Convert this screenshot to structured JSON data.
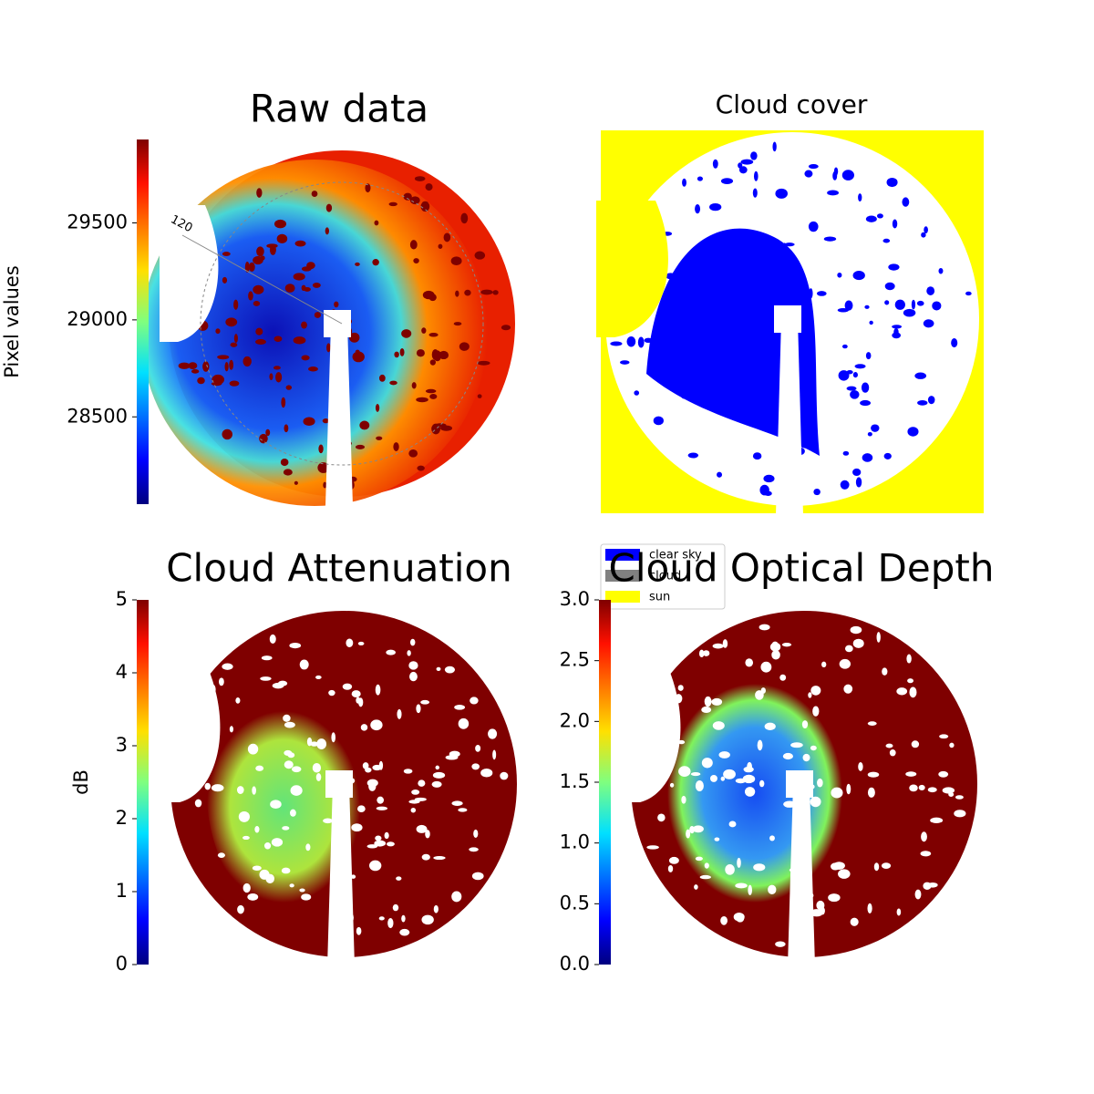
{
  "chart_data": [
    {
      "type": "image",
      "title": "Raw data",
      "colorbar": {
        "label": "Pixel values",
        "lim": [
          28050,
          29930
        ],
        "ticks": [
          28500,
          29000,
          29500
        ]
      },
      "annotations": [
        "120"
      ]
    },
    {
      "type": "image",
      "title": "Cloud cover",
      "legend": {
        "position": "lower left",
        "items": [
          {
            "name": "clear sky",
            "color": "#0000ff"
          },
          {
            "name": "cloud",
            "color": "#808080"
          },
          {
            "name": "sun",
            "color": "#ffff00"
          }
        ]
      }
    },
    {
      "type": "image",
      "title": "Cloud Attenuation",
      "colorbar": {
        "label": "dB",
        "lim": [
          0,
          5
        ],
        "ticks": [
          0,
          1,
          2,
          3,
          4,
          5
        ]
      }
    },
    {
      "type": "image",
      "title": "Cloud Optical Depth",
      "colorbar": {
        "lim": [
          0,
          3
        ],
        "ticks": [
          {
            "value": 0,
            "label": "0.0"
          },
          {
            "value": 0.5,
            "label": "0.5"
          },
          {
            "value": 1,
            "label": "1.0"
          },
          {
            "value": 1.5,
            "label": "1.5"
          },
          {
            "value": 2,
            "label": "2.0"
          },
          {
            "value": 2.5,
            "label": "2.5"
          },
          {
            "value": 3,
            "label": "3.0"
          }
        ]
      }
    }
  ]
}
